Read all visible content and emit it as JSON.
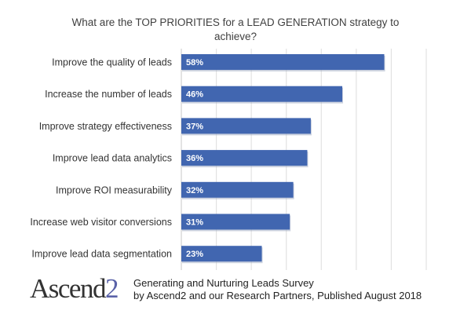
{
  "chart_data": {
    "type": "bar",
    "orientation": "horizontal",
    "title": "What are the TOP PRIORITIES for a LEAD GENERATION strategy to achieve?",
    "categories": [
      "Improve the quality of leads",
      "Increase the number of leads",
      "Improve strategy effectiveness",
      "Improve lead data analytics",
      "Improve ROI measurability",
      "Increase web visitor conversions",
      "Improve lead data segmentation"
    ],
    "values": [
      58,
      46,
      37,
      36,
      32,
      31,
      23
    ],
    "data_labels": [
      "58%",
      "46%",
      "37%",
      "36%",
      "32%",
      "31%",
      "23%"
    ],
    "unit": "%",
    "xlim": [
      0,
      70
    ],
    "grid_step": 10,
    "grid": true,
    "xlabel": "",
    "ylabel": "",
    "bar_color": "#4166b0",
    "legend": "none"
  },
  "footer": {
    "logo_main": "Ascend",
    "logo_accent": "2",
    "line1": "Generating and Nurturing Leads Survey",
    "line2": "by Ascend2 and our Research Partners, Published August 2018"
  }
}
